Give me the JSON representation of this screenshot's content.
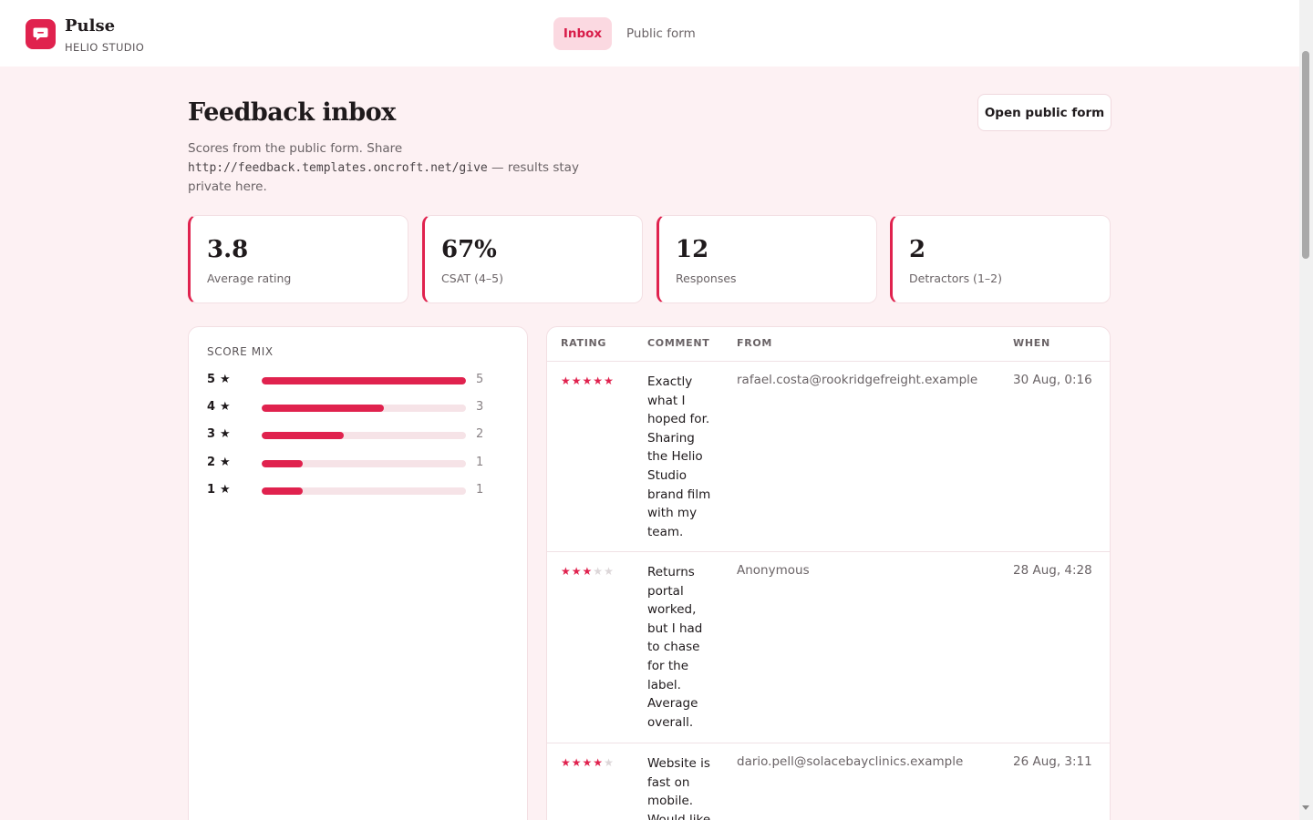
{
  "brand": {
    "name": "Pulse",
    "subtitle": "HELIO STUDIO",
    "accent": "#e0224e"
  },
  "nav": {
    "tabs": [
      {
        "label": "Inbox",
        "active": true
      },
      {
        "label": "Public form",
        "active": false
      }
    ]
  },
  "header": {
    "title": "Feedback inbox",
    "desc_prefix": "Scores from the public form. Share",
    "desc_url": "http://feedback.templates.oncroft.net/give",
    "desc_suffix": "— results stay private here.",
    "open_button": "Open public form"
  },
  "stats": [
    {
      "value": "3.8",
      "label": "Average rating"
    },
    {
      "value": "67%",
      "label": "CSAT (4–5)"
    },
    {
      "value": "12",
      "label": "Responses"
    },
    {
      "value": "2",
      "label": "Detractors (1–2)"
    }
  ],
  "score_mix": {
    "title": "SCORE MIX",
    "max": 5,
    "rows": [
      {
        "score": "5",
        "count": 5
      },
      {
        "score": "4",
        "count": 3
      },
      {
        "score": "3",
        "count": 2
      },
      {
        "score": "2",
        "count": 1
      },
      {
        "score": "1",
        "count": 1
      }
    ]
  },
  "table": {
    "headers": {
      "rating": "RATING",
      "comment": "COMMENT",
      "from": "FROM",
      "when": "WHEN"
    },
    "rows": [
      {
        "rating": 5,
        "comment": "Exactly what I hoped for. Sharing the Helio Studio brand film with my team.",
        "from": "rafael.costa@rookridgefreight.example",
        "when": "30 Aug, 0:16"
      },
      {
        "rating": 3,
        "comment": "Returns portal worked, but I had to chase for the label. Average overall.",
        "from": "Anonymous",
        "when": "28 Aug, 4:28"
      },
      {
        "rating": 4,
        "comment": "Website is fast on mobile. Would like",
        "from": "dario.pell@solacebayclinics.example",
        "when": "26 Aug, 3:11"
      }
    ]
  }
}
